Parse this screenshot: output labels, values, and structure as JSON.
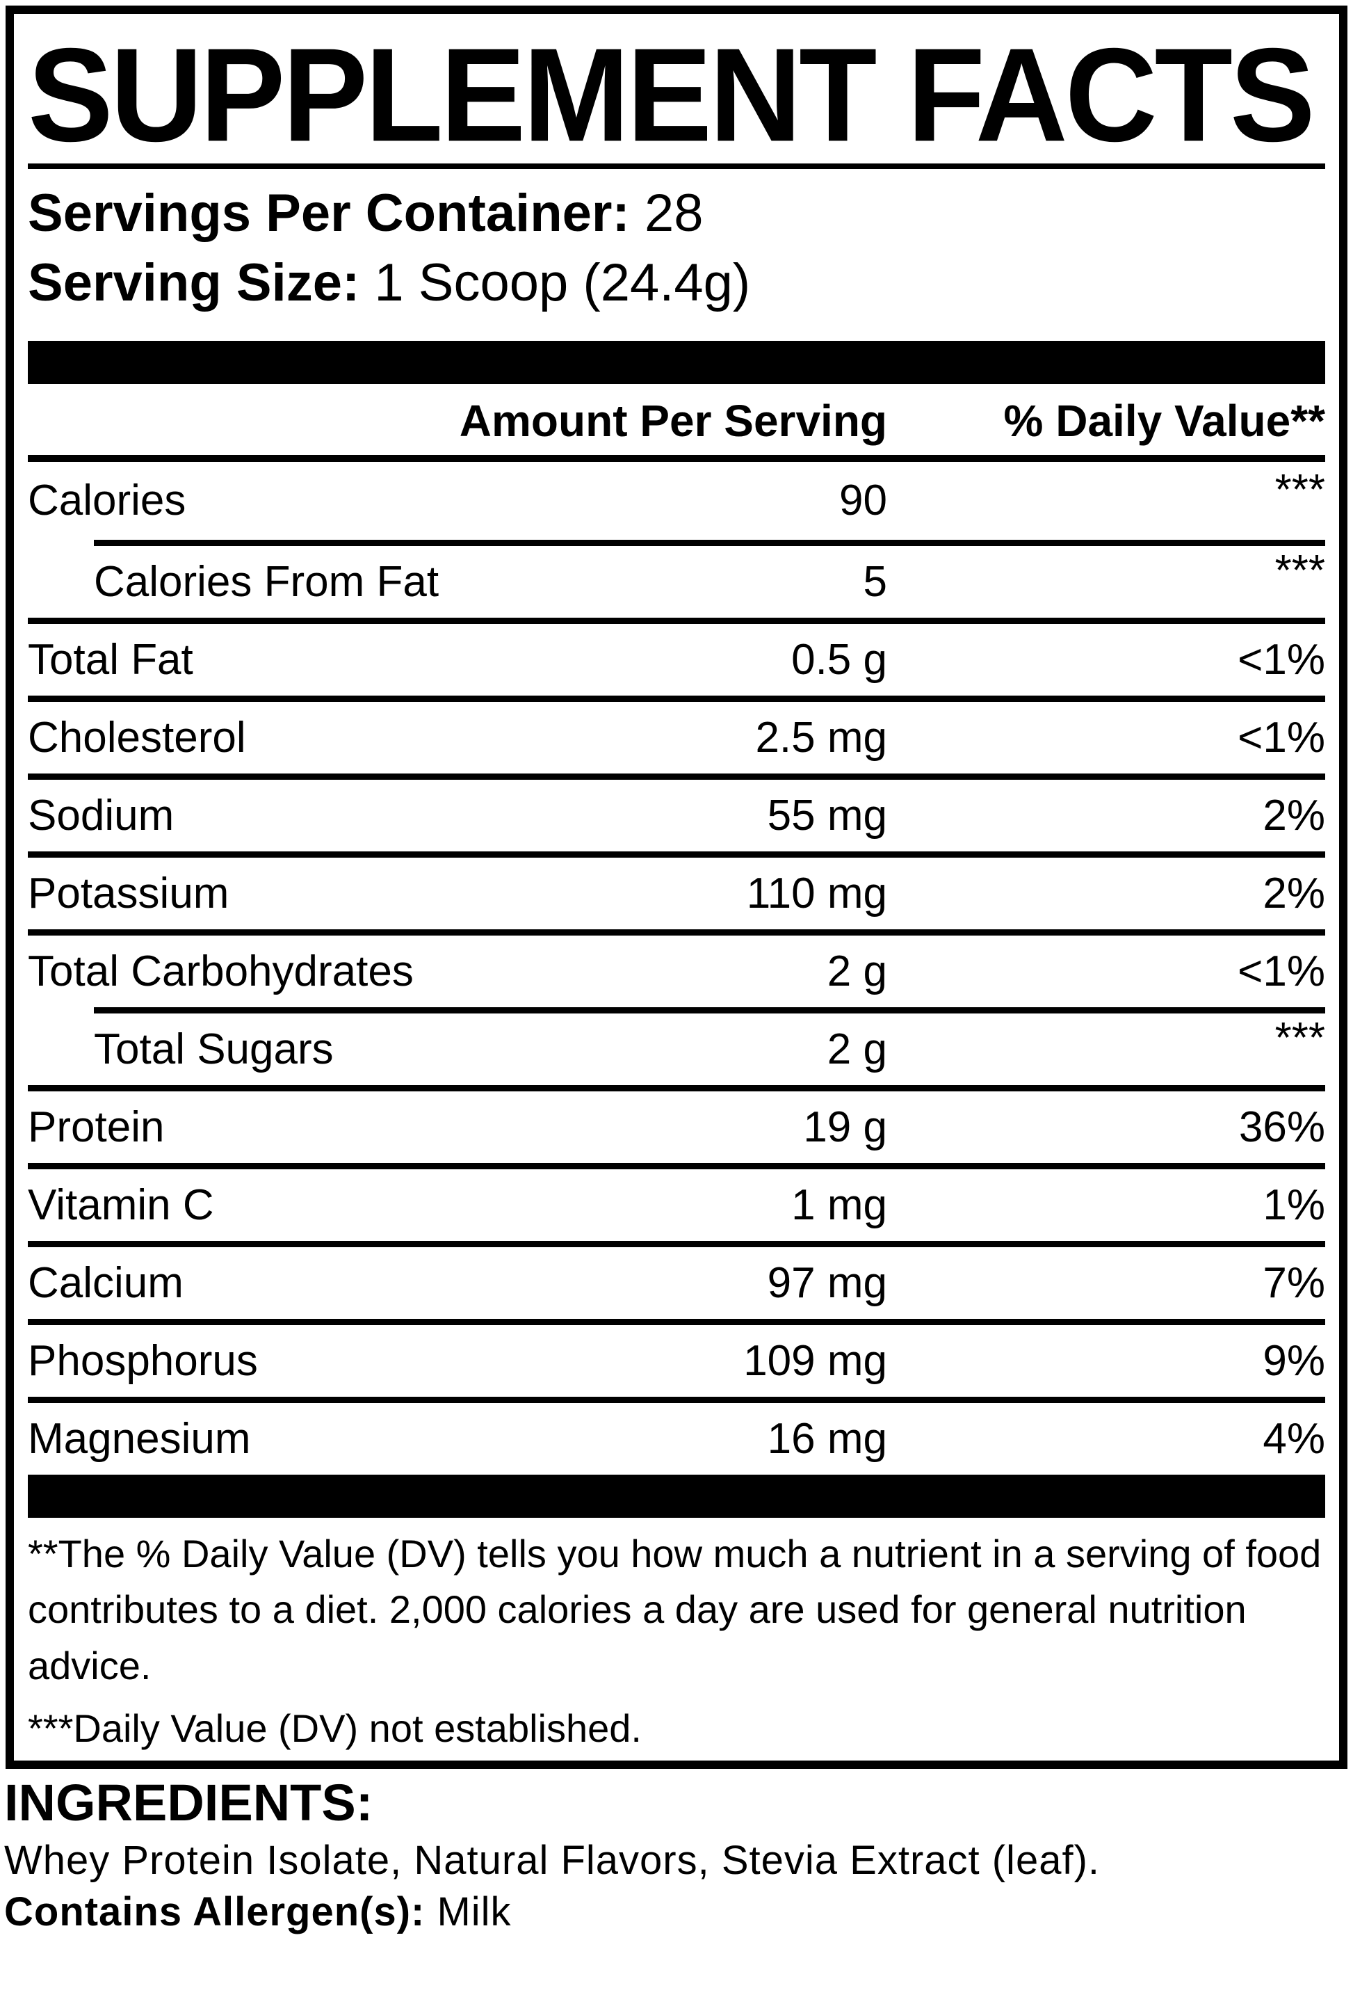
{
  "label": {
    "title": "SUPPLEMENT FACTS",
    "servings_per_container_label": "Servings Per Container:",
    "servings_per_container_value": "28",
    "serving_size_label": "Serving Size:",
    "serving_size_value": "1 Scoop (24.4g)",
    "header": {
      "amount": "Amount Per Serving",
      "daily_value": "% Daily Value**"
    },
    "rows": [
      {
        "name": "Calories",
        "amount": "90",
        "dv": "***",
        "indent": false
      },
      {
        "name": "Calories From Fat",
        "amount": "5",
        "dv": "***",
        "indent": true
      },
      {
        "name": "Total Fat",
        "amount": "0.5 g",
        "dv": "<1%",
        "indent": false
      },
      {
        "name": "Cholesterol",
        "amount": "2.5 mg",
        "dv": "<1%",
        "indent": false
      },
      {
        "name": "Sodium",
        "amount": "55 mg",
        "dv": "2%",
        "indent": false
      },
      {
        "name": "Potassium",
        "amount": "110 mg",
        "dv": "2%",
        "indent": false
      },
      {
        "name": "Total Carbohydrates",
        "amount": "2 g",
        "dv": "<1%",
        "indent": false
      },
      {
        "name": "Total Sugars",
        "amount": "2 g",
        "dv": "***",
        "indent": true
      },
      {
        "name": "Protein",
        "amount": "19 g",
        "dv": "36%",
        "indent": false
      },
      {
        "name": "Vitamin C",
        "amount": "1 mg",
        "dv": "1%",
        "indent": false
      },
      {
        "name": "Calcium",
        "amount": "97 mg",
        "dv": "7%",
        "indent": false
      },
      {
        "name": "Phosphorus",
        "amount": "109 mg",
        "dv": "9%",
        "indent": false
      },
      {
        "name": "Magnesium",
        "amount": "16 mg",
        "dv": "4%",
        "indent": false
      }
    ],
    "footnote_daily_value": "**The % Daily Value (DV) tells you how much a nutrient in a serving of food contributes to a diet. 2,000 calories a day are used for general nutrition advice.",
    "footnote_not_established": "***Daily Value (DV) not established."
  },
  "ingredients": {
    "heading": "INGREDIENTS:",
    "text": "Whey Protein Isolate, Natural Flavors, Stevia Extract (leaf).",
    "allergen_label": "Contains Allergen(s):",
    "allergen_value": "Milk"
  },
  "colors": {
    "ink": "#000000",
    "paper": "#ffffff"
  }
}
